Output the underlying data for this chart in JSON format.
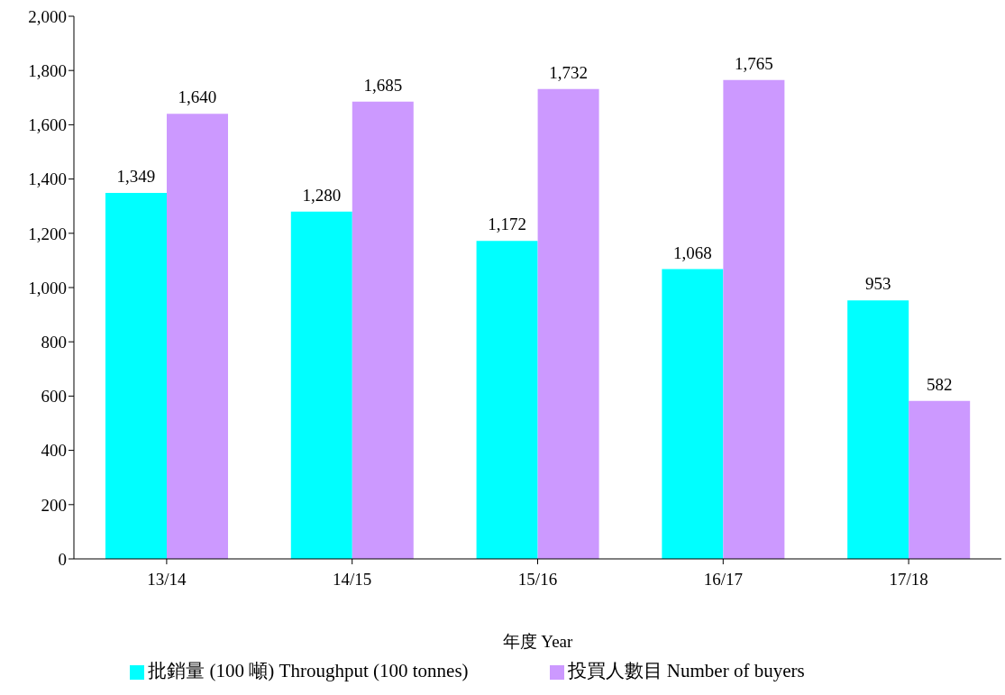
{
  "chart_data": {
    "type": "bar",
    "xlabel": "年度  Year",
    "categories": [
      "13/14",
      "14/15",
      "15/16",
      "16/17",
      "17/18"
    ],
    "series": [
      {
        "name": "批銷量 (100 噸) Throughput (100 tonnes)",
        "color": "#00ffff",
        "values": [
          1349,
          1280,
          1172,
          1068,
          953
        ],
        "value_labels": [
          "1,349",
          "1,280",
          "1,172",
          "1,068",
          "953"
        ]
      },
      {
        "name": "投買人數目 Number of buyers",
        "color": "#cc99ff",
        "values": [
          1640,
          1685,
          1732,
          1765,
          582
        ],
        "value_labels": [
          "1,640",
          "1,685",
          "1,732",
          "1,765",
          "582"
        ]
      }
    ],
    "ylim": [
      0,
      2000
    ],
    "yticks": [
      0,
      200,
      400,
      600,
      800,
      {
        "value": 1000,
        "label": "1,000"
      },
      {
        "value": 1200,
        "label": "1,200"
      },
      {
        "value": 1400,
        "label": "1,400"
      },
      {
        "value": 1600,
        "label": "1,600"
      },
      {
        "value": 1800,
        "label": "1,800"
      },
      {
        "value": 2000,
        "label": "2,000"
      }
    ],
    "grid": false,
    "legend": "bottom"
  }
}
